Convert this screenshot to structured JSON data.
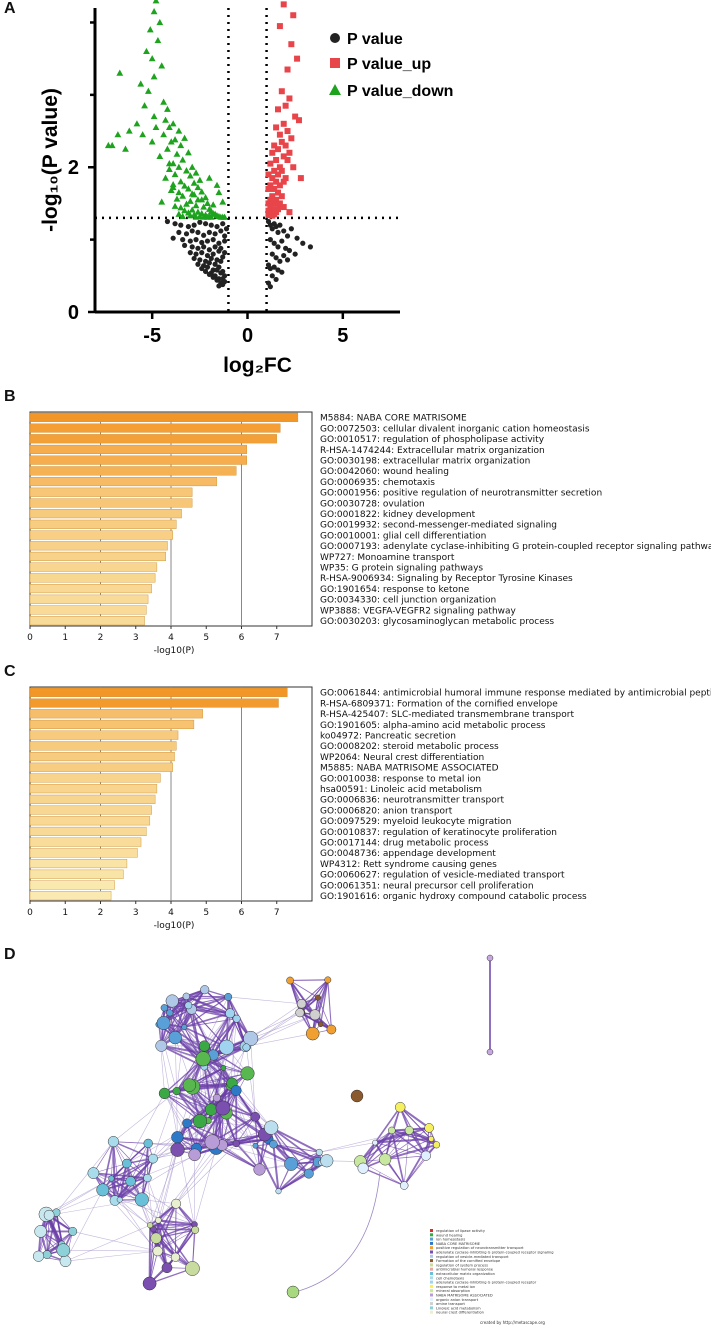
{
  "panels": {
    "a": "A",
    "b": "B",
    "c": "C",
    "d": "D"
  },
  "chart_data": [
    {
      "type": "scatter",
      "panel": "A",
      "title": "",
      "xlabel": "log₂FC",
      "ylabel": "-log₁₀(P value)",
      "xlim": [
        -8,
        8
      ],
      "ylim": [
        0,
        4.2
      ],
      "xticks": [
        "-5",
        "0",
        "5"
      ],
      "yticks": [
        "0",
        "2"
      ],
      "thresholds": {
        "fc": [
          -1,
          1
        ],
        "p": 1.3
      },
      "legend": [
        "P value",
        "P value_up",
        "P value_down"
      ],
      "colors": {
        "ns": "#222222",
        "up": "#e8454b",
        "down": "#1ea31e"
      },
      "series": [
        {
          "name": "P value_down",
          "x": [
            -4.8,
            -4.9,
            -4.6,
            -5.1,
            -4.7,
            -5.3,
            -5.0,
            -4.5,
            -4.9,
            -6.7,
            -5.6,
            -5.2,
            -4.4,
            -4.2,
            -5.4,
            -4.9,
            -4.3,
            -5.8,
            -6.2,
            -5.5,
            -4.8,
            -5.0,
            -6.8,
            -7.1,
            -7.3,
            -6.4,
            -3.9,
            -4.1,
            -3.6,
            -4.4,
            -3.3,
            -3.8,
            -4.0,
            -3.5,
            -4.2,
            -3.1,
            -3.7,
            -4.6,
            -3.4,
            -3.9,
            -2.9,
            -3.6,
            -4.1,
            -3.2,
            -2.7,
            -3.8,
            -3.0,
            -4.3,
            -2.5,
            -3.5,
            -2.8,
            -3.9,
            -3.3,
            -2.6,
            -3.1,
            -4.0,
            -2.4,
            -3.6,
            -2.9,
            -3.4,
            -2.2,
            -3.7,
            -2.6,
            -3.0,
            -4.5,
            -2.1,
            -3.2,
            -2.7,
            -3.8,
            -2.3,
            -3.5,
            -2.0,
            -2.9,
            -3.3,
            -1.9,
            -2.6,
            -3.1,
            -1.8,
            -2.4,
            -3.6,
            -1.7,
            -2.2,
            -2.8,
            -1.6,
            -3.0,
            -2.0,
            -2.5,
            -1.5,
            -3.4,
            -1.4,
            -2.1,
            -2.7,
            -1.3,
            -1.9,
            -2.3,
            -1.2,
            -2.8,
            -1.6,
            -2.0,
            -2.4,
            -1.5,
            -1.8,
            -3.2,
            -4.1,
            -3.9,
            -1.3
          ],
          "y": [
            4.3,
            4.15,
            4.0,
            3.9,
            3.75,
            3.6,
            3.5,
            3.4,
            3.25,
            3.3,
            3.15,
            3.05,
            2.9,
            2.8,
            2.85,
            2.7,
            2.65,
            2.6,
            2.5,
            2.45,
            2.55,
            2.35,
            2.45,
            2.3,
            2.3,
            2.25,
            2.6,
            2.55,
            2.5,
            2.45,
            2.4,
            2.38,
            2.35,
            2.3,
            2.25,
            2.2,
            2.18,
            2.15,
            2.1,
            2.05,
            2.0,
            2.0,
            1.97,
            1.95,
            1.92,
            1.9,
            1.88,
            1.85,
            1.82,
            1.8,
            1.78,
            1.76,
            1.74,
            1.72,
            1.7,
            1.68,
            1.66,
            1.65,
            1.63,
            1.6,
            1.58,
            1.56,
            1.55,
            1.53,
            1.52,
            1.5,
            1.49,
            1.47,
            1.46,
            1.45,
            1.44,
            1.42,
            1.41,
            1.4,
            1.39,
            1.38,
            1.37,
            1.36,
            1.36,
            1.35,
            1.35,
            1.34,
            1.34,
            1.33,
            1.33,
            1.33,
            1.32,
            1.32,
            1.32,
            1.31,
            1.31,
            1.31,
            1.31,
            1.31,
            1.31,
            1.31,
            1.62,
            1.75,
            1.85,
            1.55,
            1.65,
            1.48,
            1.95,
            2.05,
            1.72,
            1.52
          ]
        },
        {
          "name": "P value_up",
          "x": [
            1.9,
            2.4,
            1.7,
            2.3,
            2.6,
            2.1,
            1.8,
            2.2,
            2.0,
            1.6,
            2.5,
            1.9,
            2.7,
            1.5,
            2.1,
            1.7,
            2.3,
            1.8,
            1.4,
            2.0,
            1.6,
            2.2,
            1.3,
            1.9,
            1.5,
            2.1,
            1.2,
            1.7,
            2.4,
            1.4,
            1.8,
            1.1,
            1.6,
            2.0,
            1.3,
            1.5,
            1.9,
            1.2,
            1.7,
            1.4,
            1.1,
            1.6,
            1.3,
            1.8,
            1.2,
            1.5,
            1.1,
            1.4,
            1.7,
            1.2,
            1.3,
            1.6,
            1.1,
            1.5,
            1.2,
            1.4,
            1.1,
            1.3,
            2.8,
            1.9,
            1.7,
            2.2
          ],
          "y": [
            4.25,
            4.1,
            3.95,
            3.7,
            3.5,
            3.35,
            3.05,
            2.95,
            2.85,
            2.8,
            2.7,
            2.6,
            2.65,
            2.55,
            2.5,
            2.45,
            2.4,
            2.35,
            2.3,
            2.3,
            2.25,
            2.2,
            2.2,
            2.15,
            2.1,
            2.1,
            2.05,
            2.0,
            2.0,
            1.95,
            1.95,
            1.9,
            1.9,
            1.85,
            1.85,
            1.8,
            1.8,
            1.75,
            1.75,
            1.7,
            1.7,
            1.65,
            1.6,
            1.6,
            1.55,
            1.55,
            1.5,
            1.5,
            1.45,
            1.45,
            1.42,
            1.42,
            1.4,
            1.38,
            1.36,
            1.35,
            1.34,
            1.33,
            1.85,
            1.45,
            1.5,
            1.38
          ]
        },
        {
          "name": "P value",
          "x": [
            -4.2,
            -3.8,
            -3.5,
            -3.1,
            -2.8,
            -2.5,
            -2.2,
            -1.9,
            -1.6,
            -1.3,
            -1.1,
            -3.6,
            -3.2,
            -2.9,
            -2.6,
            -2.3,
            -2.0,
            -1.7,
            -1.4,
            -1.2,
            -3.9,
            -3.4,
            -3.0,
            -2.7,
            -2.4,
            -2.1,
            -1.8,
            -1.5,
            -1.2,
            -3.3,
            -2.9,
            -2.6,
            -2.3,
            -2.0,
            -1.7,
            -1.4,
            -3.0,
            -2.7,
            -2.4,
            -2.1,
            -1.8,
            -1.5,
            -1.2,
            -2.8,
            -2.5,
            -2.2,
            -1.9,
            -1.6,
            -1.3,
            -2.6,
            -2.3,
            -2.0,
            -1.7,
            -1.4,
            -2.4,
            -2.1,
            -1.8,
            -1.5,
            -2.2,
            -1.9,
            -1.6,
            -1.3,
            -2.0,
            -1.7,
            -1.4,
            -1.8,
            -1.5,
            -1.2,
            -1.6,
            -1.3,
            -1.4,
            -1.2,
            -1.5,
            -1.3,
            1.1,
            1.2,
            1.3,
            1.4,
            1.5,
            1.6,
            1.7,
            1.9,
            2.1,
            2.3,
            2.6,
            2.9,
            3.3,
            1.2,
            1.4,
            1.6,
            1.8,
            2.0,
            2.2,
            2.5,
            1.3,
            1.5,
            1.7,
            1.9,
            2.1,
            1.1,
            1.2,
            1.4,
            1.6,
            1.8,
            1.3,
            1.5,
            1.1,
            1.2
          ],
          "y": [
            1.25,
            1.22,
            1.2,
            1.18,
            1.2,
            1.24,
            1.22,
            1.2,
            1.18,
            1.22,
            1.15,
            1.1,
            1.08,
            1.12,
            1.1,
            1.06,
            1.1,
            1.08,
            1.12,
            1.05,
            1.02,
            1.0,
            0.98,
            1.0,
            0.96,
            0.98,
            1.0,
            0.95,
            0.98,
            0.92,
            0.9,
            0.88,
            0.9,
            0.86,
            0.9,
            0.88,
            0.82,
            0.8,
            0.82,
            0.78,
            0.8,
            0.84,
            0.82,
            0.74,
            0.72,
            0.7,
            0.74,
            0.72,
            0.76,
            0.66,
            0.64,
            0.68,
            0.66,
            0.7,
            0.6,
            0.62,
            0.58,
            0.62,
            0.56,
            0.54,
            0.58,
            0.56,
            0.52,
            0.5,
            0.54,
            0.48,
            0.46,
            0.5,
            0.44,
            0.46,
            0.4,
            0.42,
            0.36,
            0.38,
            1.25,
            1.2,
            1.15,
            1.22,
            1.18,
            1.1,
            1.2,
            1.12,
            1.05,
            1.15,
            1.02,
            0.95,
            0.9,
            1.0,
            0.95,
            0.9,
            0.98,
            0.88,
            0.85,
            0.8,
            0.8,
            0.75,
            0.7,
            0.78,
            0.72,
            0.65,
            0.6,
            0.62,
            0.58,
            0.55,
            0.5,
            0.45,
            0.4,
            0.35
          ]
        }
      ]
    },
    {
      "type": "bar",
      "panel": "B",
      "orientation": "horizontal",
      "xlabel": "-log10(P)",
      "xlim": [
        0,
        8
      ],
      "xticks": [
        "0",
        "1",
        "2",
        "3",
        "4",
        "5",
        "6",
        "7"
      ],
      "categories": [
        "M5884: NABA CORE MATRISOME",
        "GO:0072503: cellular divalent inorganic cation homeostasis",
        "GO:0010517: regulation of phospholipase activity",
        "R-HSA-1474244: Extracellular matrix organization",
        "GO:0030198: extracellular matrix organization",
        "GO:0042060: wound healing",
        "GO:0006935: chemotaxis",
        "GO:0001956: positive regulation of neurotransmitter secretion",
        "GO:0030728: ovulation",
        "GO:0001822: kidney development",
        "GO:0019932: second-messenger-mediated signaling",
        "GO:0010001: glial cell differentiation",
        "GO:0007193: adenylate cyclase-inhibiting G protein-coupled receptor signaling pathway",
        "WP727: Monoamine transport",
        "WP35: G protein signaling pathways",
        "R-HSA-9006934: Signaling by Receptor Tyrosine Kinases",
        "GO:1901654: response to ketone",
        "GO:0034330: cell junction organization",
        "WP3888: VEGFA-VEGFR2 signaling pathway",
        "GO:0030203: glycosaminoglycan metabolic process"
      ],
      "values": [
        7.6,
        7.1,
        7.0,
        6.15,
        6.15,
        5.85,
        5.3,
        4.6,
        4.6,
        4.3,
        4.15,
        4.05,
        3.9,
        3.85,
        3.6,
        3.55,
        3.45,
        3.35,
        3.3,
        3.25
      ]
    },
    {
      "type": "bar",
      "panel": "C",
      "orientation": "horizontal",
      "xlabel": "-log10(P)",
      "xlim": [
        0,
        8
      ],
      "xticks": [
        "0",
        "1",
        "2",
        "3",
        "4",
        "5",
        "6",
        "7"
      ],
      "categories": [
        "GO:0061844: antimicrobial humoral immune response mediated by antimicrobial peptide",
        "R-HSA-6809371: Formation of the cornified envelope",
        "R-HSA-425407: SLC-mediated transmembrane transport",
        "GO:1901605: alpha-amino acid metabolic process",
        "ko04972: Pancreatic secretion",
        "GO:0008202: steroid metabolic process",
        "WP2064: Neural crest differentiation",
        "M5885: NABA MATRISOME ASSOCIATED",
        "GO:0010038: response to metal ion",
        "hsa00591: Linoleic acid metabolism",
        "GO:0006836: neurotransmitter transport",
        "GO:0006820: anion transport",
        "GO:0097529: myeloid leukocyte migration",
        "GO:0010837: regulation of keratinocyte proliferation",
        "GO:0017144: drug metabolic process",
        "GO:0048736: appendage development",
        "WP4312: Rett syndrome causing genes",
        "GO:0060627: regulation of vesicle-mediated transport",
        "GO:0061351: neural precursor cell proliferation",
        "GO:1901616: organic hydroxy compound catabolic process"
      ],
      "values": [
        7.3,
        7.05,
        4.9,
        4.65,
        4.2,
        4.15,
        4.1,
        4.05,
        3.7,
        3.6,
        3.55,
        3.45,
        3.4,
        3.3,
        3.15,
        3.05,
        2.75,
        2.65,
        2.4,
        2.3
      ]
    }
  ],
  "network": {
    "panel": "D",
    "legend": [
      "regulation of lipase activity",
      "wound healing",
      "ion homeostasis",
      "NABA CORE MATRISOME",
      "positive regulation of neurotransmitter transport",
      "adenylate cyclase-inhibiting G protein-coupled receptor signaling",
      "regulation of vesicle-mediated transport",
      "Formation of the cornified envelope",
      "regulation of system process",
      "antimicrobial humoral response",
      "extracellular matrix organization",
      "cell chemotaxis",
      "adenylate cyclase-inhibiting G protein-coupled receptor",
      "response to metal ion",
      "mineral absorption",
      "NABA MATRISOME ASSOCIATED",
      "organic anion transport",
      "amine transport",
      "Linoleic acid metabolism",
      "neural crest differentiation"
    ],
    "credit": "created by http://metascape.org"
  }
}
